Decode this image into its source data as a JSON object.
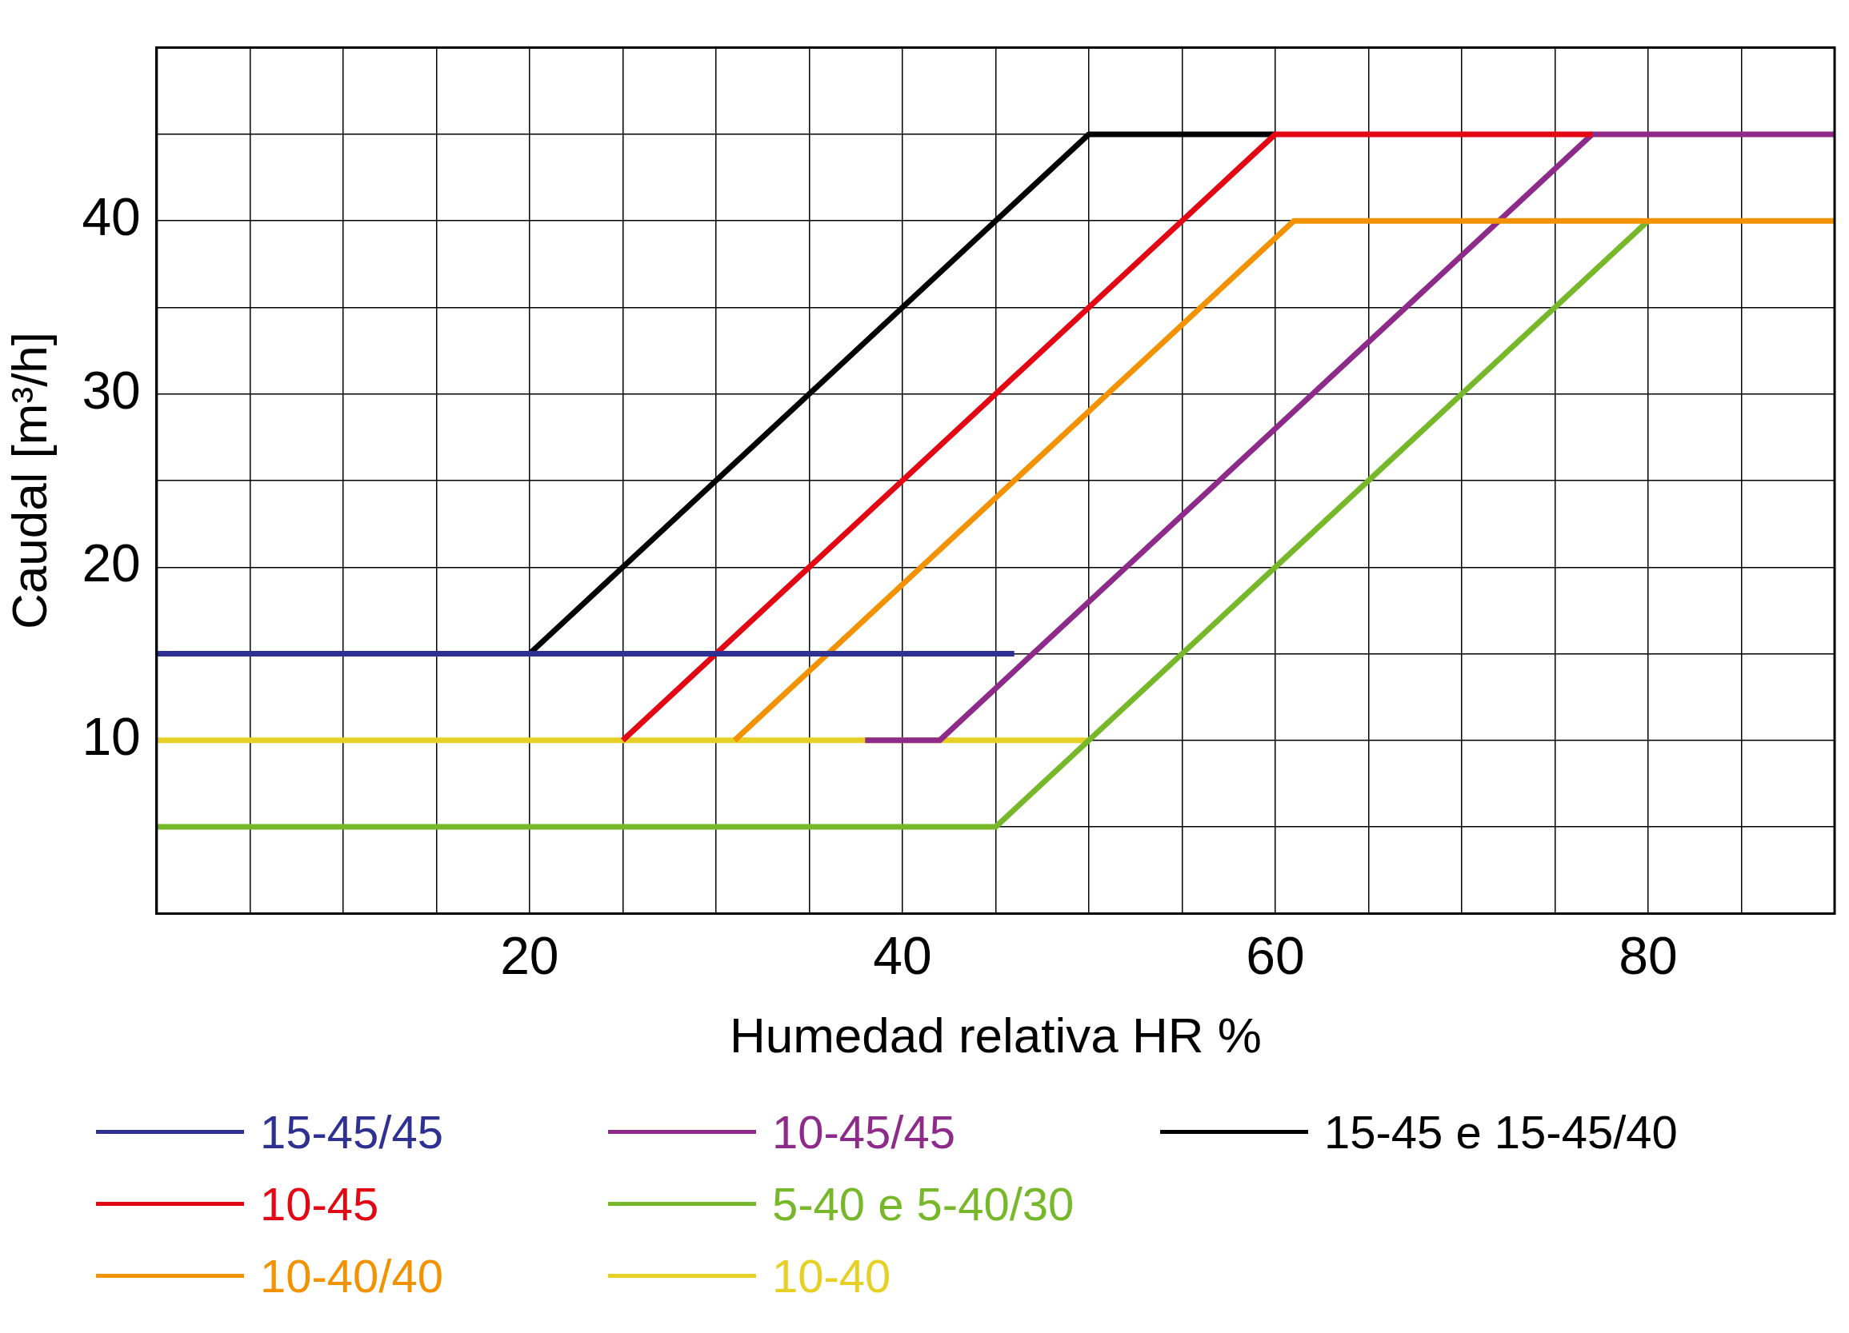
{
  "chart_data": {
    "type": "line",
    "xlabel": "Humedad relativa HR %",
    "ylabel": "Caudal [m³/h]",
    "xlim": [
      0,
      90
    ],
    "ylim": [
      0,
      50
    ],
    "xticks": [
      {
        "value": 0,
        "label": null
      },
      {
        "value": 5,
        "label": null
      },
      {
        "value": 10,
        "label": null
      },
      {
        "value": 15,
        "label": null
      },
      20,
      {
        "value": 25,
        "label": null
      },
      {
        "value": 30,
        "label": null
      },
      {
        "value": 35,
        "label": null
      },
      40,
      {
        "value": 45,
        "label": null
      },
      {
        "value": 50,
        "label": null
      },
      {
        "value": 55,
        "label": null
      },
      60,
      {
        "value": 65,
        "label": null
      },
      {
        "value": 70,
        "label": null
      },
      {
        "value": 75,
        "label": null
      },
      80,
      {
        "value": 85,
        "label": null
      },
      {
        "value": 90,
        "label": null
      }
    ],
    "yticks": [
      {
        "value": 0,
        "label": null
      },
      {
        "value": 5,
        "label": null
      },
      10,
      {
        "value": 15,
        "label": null
      },
      20,
      {
        "value": 25,
        "label": null
      },
      30,
      {
        "value": 35,
        "label": null
      },
      40,
      {
        "value": 45,
        "label": null
      },
      {
        "value": 50,
        "label": null
      }
    ],
    "grid": true,
    "legend": "bottom",
    "marker": "none",
    "line_style": "solid",
    "series": [
      {
        "name": "15-45/45",
        "color": "#2e3192",
        "x": [
          0,
          46
        ],
        "values": [
          15,
          15
        ]
      },
      {
        "name": "10-45",
        "color": "#e30613",
        "x": [
          25,
          60,
          77
        ],
        "values": [
          10,
          45,
          45
        ]
      },
      {
        "name": "10-40/40",
        "color": "#f39200",
        "x": [
          31,
          61,
          90
        ],
        "values": [
          10,
          40,
          40
        ]
      },
      {
        "name": "10-45/45",
        "color": "#8e2b8a",
        "x": [
          38,
          42,
          77,
          90
        ],
        "values": [
          10,
          10,
          45,
          45
        ]
      },
      {
        "name": "5-40 e 5-40/30",
        "color": "#76b82a",
        "x": [
          0,
          45,
          80
        ],
        "values": [
          5,
          5,
          40
        ]
      },
      {
        "name": "10-40",
        "color": "#e6d025",
        "x": [
          0,
          50
        ],
        "values": [
          10,
          10
        ]
      },
      {
        "name": "15-45 e 15-45/40",
        "color": "#000000",
        "x": [
          20,
          50,
          60
        ],
        "values": [
          15,
          45,
          45
        ]
      }
    ]
  }
}
